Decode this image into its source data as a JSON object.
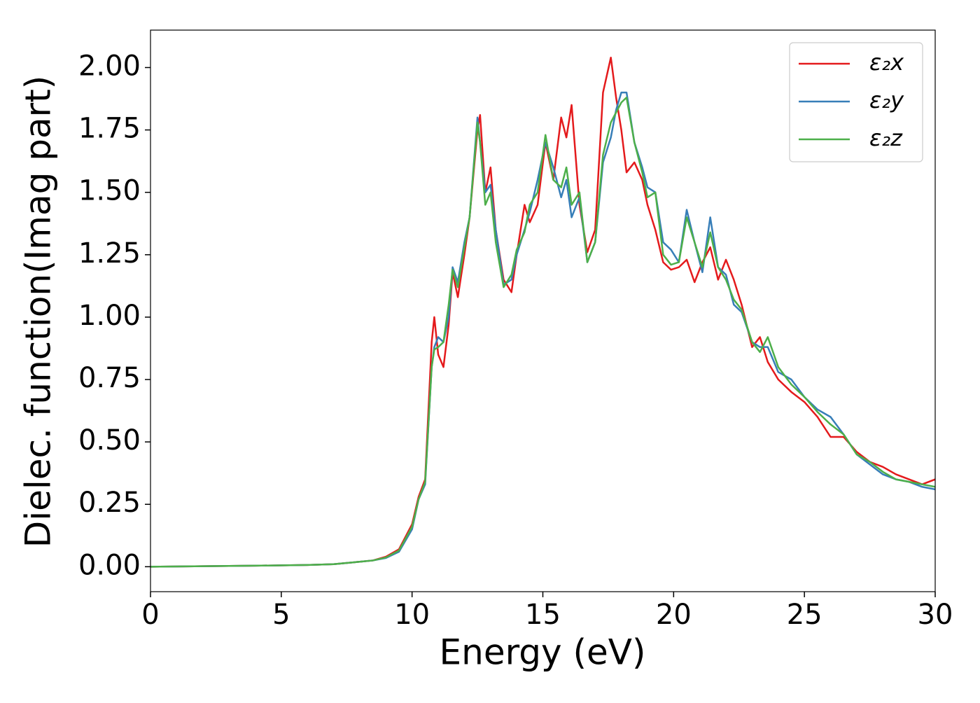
{
  "chart_data": {
    "type": "line",
    "x_label": "Energy (eV)",
    "y_label": "Dielec. function(Imag part)",
    "xlim": [
      0,
      30
    ],
    "ylim": [
      -0.1,
      2.15
    ],
    "xticks": [
      0,
      5,
      10,
      15,
      20,
      25,
      30
    ],
    "yticks": [
      {
        "value": 0,
        "label": "0.00"
      },
      {
        "value": 0.25,
        "label": "0.25"
      },
      {
        "value": 0.5,
        "label": "0.50"
      },
      {
        "value": 0.75,
        "label": "0.75"
      },
      {
        "value": 1,
        "label": "1.00"
      },
      {
        "value": 1.25,
        "label": "1.25"
      },
      {
        "value": 1.5,
        "label": "1.50"
      },
      {
        "value": 1.75,
        "label": "1.75"
      },
      {
        "value": 2,
        "label": "2.00"
      }
    ],
    "legend": "upper right",
    "x": [
      0,
      2,
      4,
      6,
      7,
      8,
      8.5,
      9,
      9.5,
      10,
      10.25,
      10.5,
      10.75,
      10.85,
      11,
      11.2,
      11.4,
      11.55,
      11.75,
      12,
      12.2,
      12.5,
      12.6,
      12.8,
      13,
      13.2,
      13.5,
      13.8,
      14,
      14.3,
      14.5,
      14.8,
      15.1,
      15.4,
      15.7,
      15.9,
      16.1,
      16.4,
      16.7,
      17,
      17.3,
      17.6,
      17.8,
      18,
      18.2,
      18.5,
      18.8,
      19,
      19.3,
      19.6,
      19.9,
      20.2,
      20.5,
      20.8,
      21.1,
      21.4,
      21.7,
      22,
      22.3,
      22.6,
      23,
      23.3,
      23.6,
      24,
      24.5,
      25,
      25.5,
      26,
      26.5,
      27,
      27.5,
      28,
      28.5,
      29,
      29.5,
      30
    ],
    "series": [
      {
        "name": "ε₂x",
        "color": "#e41a1c",
        "values": [
          0,
          0.002,
          0.004,
          0.007,
          0.01,
          0.02,
          0.025,
          0.04,
          0.07,
          0.17,
          0.28,
          0.35,
          0.9,
          1.0,
          0.85,
          0.8,
          0.97,
          1.18,
          1.08,
          1.25,
          1.4,
          1.75,
          1.81,
          1.5,
          1.6,
          1.35,
          1.15,
          1.1,
          1.25,
          1.45,
          1.38,
          1.45,
          1.7,
          1.55,
          1.8,
          1.72,
          1.85,
          1.45,
          1.26,
          1.35,
          1.9,
          2.04,
          1.88,
          1.75,
          1.58,
          1.62,
          1.55,
          1.45,
          1.35,
          1.22,
          1.19,
          1.2,
          1.23,
          1.14,
          1.22,
          1.28,
          1.15,
          1.23,
          1.15,
          1.05,
          0.88,
          0.92,
          0.82,
          0.75,
          0.7,
          0.66,
          0.6,
          0.52,
          0.52,
          0.46,
          0.42,
          0.4,
          0.37,
          0.35,
          0.33,
          0.35
        ]
      },
      {
        "name": "ε₂y",
        "color": "#377eb8",
        "values": [
          0,
          0.002,
          0.004,
          0.007,
          0.01,
          0.02,
          0.025,
          0.035,
          0.06,
          0.15,
          0.27,
          0.33,
          0.8,
          0.88,
          0.92,
          0.9,
          1.0,
          1.2,
          1.14,
          1.3,
          1.4,
          1.8,
          1.7,
          1.5,
          1.53,
          1.35,
          1.13,
          1.15,
          1.25,
          1.35,
          1.42,
          1.55,
          1.7,
          1.6,
          1.48,
          1.55,
          1.4,
          1.48,
          1.22,
          1.3,
          1.62,
          1.72,
          1.83,
          1.9,
          1.9,
          1.7,
          1.6,
          1.52,
          1.5,
          1.3,
          1.27,
          1.22,
          1.43,
          1.3,
          1.18,
          1.4,
          1.2,
          1.17,
          1.05,
          1.02,
          0.9,
          0.88,
          0.88,
          0.78,
          0.75,
          0.68,
          0.63,
          0.6,
          0.53,
          0.45,
          0.41,
          0.37,
          0.35,
          0.34,
          0.32,
          0.31
        ]
      },
      {
        "name": "ε₂z",
        "color": "#4daf4a",
        "values": [
          0,
          0.002,
          0.004,
          0.007,
          0.01,
          0.02,
          0.025,
          0.037,
          0.065,
          0.16,
          0.27,
          0.34,
          0.8,
          0.87,
          0.88,
          0.9,
          1.05,
          1.19,
          1.12,
          1.28,
          1.4,
          1.78,
          1.7,
          1.45,
          1.5,
          1.3,
          1.12,
          1.17,
          1.27,
          1.34,
          1.45,
          1.5,
          1.73,
          1.55,
          1.52,
          1.6,
          1.45,
          1.5,
          1.22,
          1.3,
          1.65,
          1.78,
          1.82,
          1.86,
          1.88,
          1.7,
          1.58,
          1.48,
          1.5,
          1.25,
          1.21,
          1.22,
          1.4,
          1.3,
          1.2,
          1.34,
          1.2,
          1.15,
          1.07,
          1.03,
          0.9,
          0.86,
          0.92,
          0.8,
          0.73,
          0.68,
          0.62,
          0.57,
          0.53,
          0.45,
          0.42,
          0.38,
          0.35,
          0.34,
          0.33,
          0.32
        ]
      }
    ]
  }
}
